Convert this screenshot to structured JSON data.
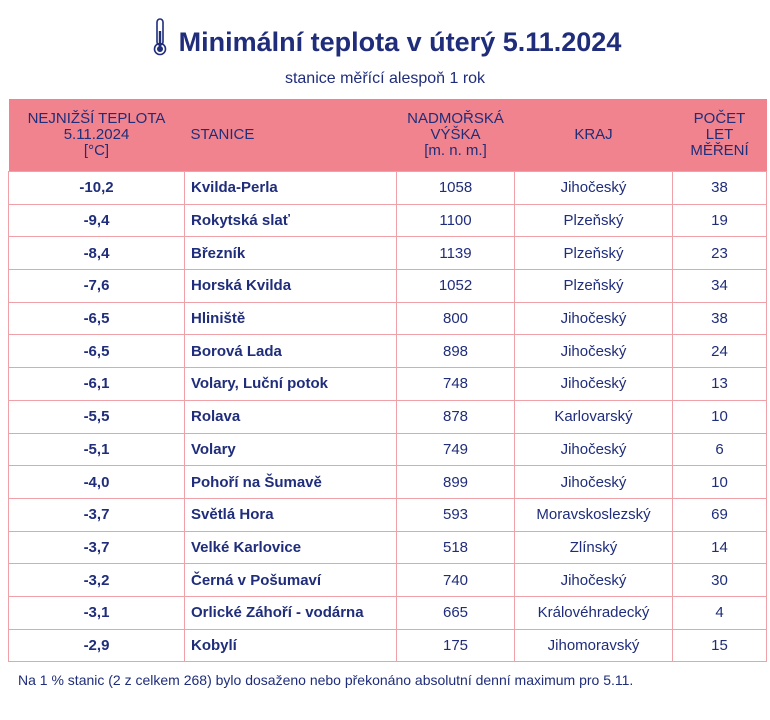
{
  "title": "Minimální teplota v úterý 5.11.2024",
  "subtitle": "stanice měřící alespoň 1 rok",
  "colors": {
    "header_bg": "#f0838d",
    "text": "#1f2d7a",
    "border": "#f0a0a7"
  },
  "icon": "thermometer-icon",
  "table": {
    "headers": {
      "temp": [
        "NEJNIŽŠÍ TEPLOTA",
        "5.11.2024",
        "[°C]"
      ],
      "station": "STANICE",
      "alt": [
        "NADMOŘSKÁ",
        "VÝŠKA",
        "[m. n. m.]"
      ],
      "region": "KRAJ",
      "years": [
        "POČET",
        "LET",
        "MĚŘENÍ"
      ]
    },
    "rows": [
      {
        "temp": "-10,2",
        "station": "Kvilda-Perla",
        "alt": "1058",
        "region": "Jihočeský",
        "years": "38"
      },
      {
        "temp": "-9,4",
        "station": "Rokytská slať",
        "alt": "1100",
        "region": "Plzeňský",
        "years": "19"
      },
      {
        "temp": "-8,4",
        "station": "Březník",
        "alt": "1139",
        "region": "Plzeňský",
        "years": "23"
      },
      {
        "temp": "-7,6",
        "station": "Horská Kvilda",
        "alt": "1052",
        "region": "Plzeňský",
        "years": "34"
      },
      {
        "temp": "-6,5",
        "station": "Hliniště",
        "alt": "800",
        "region": "Jihočeský",
        "years": "38"
      },
      {
        "temp": "-6,5",
        "station": "Borová Lada",
        "alt": "898",
        "region": "Jihočeský",
        "years": "24"
      },
      {
        "temp": "-6,1",
        "station": "Volary, Luční potok",
        "alt": "748",
        "region": "Jihočeský",
        "years": "13"
      },
      {
        "temp": "-5,5",
        "station": "Rolava",
        "alt": "878",
        "region": "Karlovarský",
        "years": "10"
      },
      {
        "temp": "-5,1",
        "station": "Volary",
        "alt": "749",
        "region": "Jihočeský",
        "years": "6"
      },
      {
        "temp": "-4,0",
        "station": "Pohoří na Šumavě",
        "alt": "899",
        "region": "Jihočeský",
        "years": "10"
      },
      {
        "temp": "-3,7",
        "station": "Světlá Hora",
        "alt": "593",
        "region": "Moravskoslezský",
        "years": "69"
      },
      {
        "temp": "-3,7",
        "station": "Velké Karlovice",
        "alt": "518",
        "region": "Zlínský",
        "years": "14"
      },
      {
        "temp": "-3,2",
        "station": "Černá v Pošumaví",
        "alt": "740",
        "region": "Jihočeský",
        "years": "30"
      },
      {
        "temp": "-3,1",
        "station": "Orlické Záhoří - vodárna",
        "alt": "665",
        "region": "Královéhradecký",
        "years": "4"
      },
      {
        "temp": "-2,9",
        "station": "Kobylí",
        "alt": "175",
        "region": "Jihomoravský",
        "years": "15"
      }
    ]
  },
  "footnote": "Na 1 % stanic (2 z celkem 268) bylo dosaženo nebo překonáno absolutní denní maximum pro 5.11."
}
